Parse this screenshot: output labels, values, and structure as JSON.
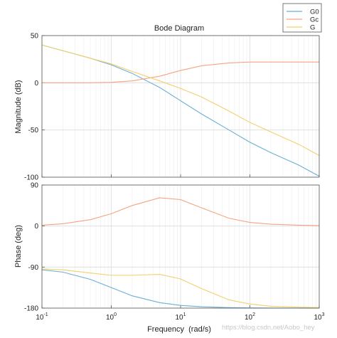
{
  "chart_data": {
    "type": "line",
    "title": "Bode Diagram",
    "xlabel": "Frequency  (rad/s)",
    "x_scale": "log",
    "xlim": [
      0.1,
      1000
    ],
    "x_ticks": [
      0.1,
      1,
      10,
      100,
      1000
    ],
    "x_tick_labels": [
      {
        "base": "10",
        "exp": "-1"
      },
      {
        "base": "10",
        "exp": "0"
      },
      {
        "base": "10",
        "exp": "1"
      },
      {
        "base": "10",
        "exp": "2"
      },
      {
        "base": "10",
        "exp": "3"
      }
    ],
    "grid": true,
    "legend_position": "top-right",
    "legend": [
      "G0",
      "Gc",
      "G"
    ],
    "colors": {
      "G0": "#6baed6",
      "Gc": "#f4a582",
      "G": "#f2d06b"
    },
    "watermark": "https://blog.csdn.net/Aobo_hey",
    "panels": [
      {
        "name": "magnitude",
        "ylabel": "Magnitude (dB)",
        "ylim": [
          -100,
          50
        ],
        "y_ticks": [
          50,
          0,
          -50,
          -100
        ],
        "y_tick_labels": [
          "50",
          "0",
          "-50",
          "-100"
        ],
        "series": [
          {
            "name": "G0",
            "x": [
              0.1,
              0.2,
              0.5,
              1,
              2,
              5,
              10,
              20,
              50,
              100,
              200,
              500,
              1000
            ],
            "y": [
              40,
              34,
              26,
              19,
              10,
              -5,
              -19,
              -33,
              -50,
              -63,
              -74,
              -87,
              -99
            ]
          },
          {
            "name": "Gc",
            "x": [
              0.1,
              0.2,
              0.5,
              1,
              2,
              5,
              10,
              20,
              50,
              100,
              200,
              500,
              1000
            ],
            "y": [
              0,
              0,
              0,
              0.5,
              2,
              7,
              13,
              18,
              21,
              22,
              22,
              22,
              22
            ]
          },
          {
            "name": "G",
            "x": [
              0.1,
              0.2,
              0.5,
              1,
              2,
              5,
              10,
              20,
              50,
              100,
              200,
              500,
              1000
            ],
            "y": [
              40,
              34,
              26,
              20,
              12,
              2,
              -6,
              -15,
              -30,
              -42,
              -52,
              -65,
              -77
            ]
          }
        ]
      },
      {
        "name": "phase",
        "ylabel": "Phase (deg)",
        "ylim": [
          -180,
          90
        ],
        "y_ticks": [
          90,
          0,
          -90,
          -180
        ],
        "y_tick_labels": [
          "90",
          "0",
          "-90",
          "-180"
        ],
        "series": [
          {
            "name": "G0",
            "x": [
              0.1,
              0.2,
              0.5,
              1,
              2,
              5,
              10,
              20,
              50,
              100,
              200,
              500,
              1000
            ],
            "y": [
              -96,
              -101,
              -117,
              -135,
              -153,
              -168,
              -174,
              -177,
              -179,
              -179.5,
              -179.8,
              -180,
              -180
            ]
          },
          {
            "name": "Gc",
            "x": [
              0.1,
              0.2,
              0.5,
              1,
              2,
              5,
              10,
              20,
              50,
              100,
              200,
              500,
              1000
            ],
            "y": [
              2,
              5,
              14,
              27,
              45,
              62,
              58,
              40,
              17,
              8,
              4,
              2,
              1
            ]
          },
          {
            "name": "G",
            "x": [
              0.1,
              0.2,
              0.5,
              1,
              2,
              5,
              10,
              20,
              50,
              100,
              200,
              500,
              1000
            ],
            "y": [
              -94,
              -96,
              -103,
              -108,
              -108,
              -106,
              -116,
              -137,
              -162,
              -171,
              -176,
              -178,
              -179
            ]
          }
        ]
      }
    ]
  }
}
